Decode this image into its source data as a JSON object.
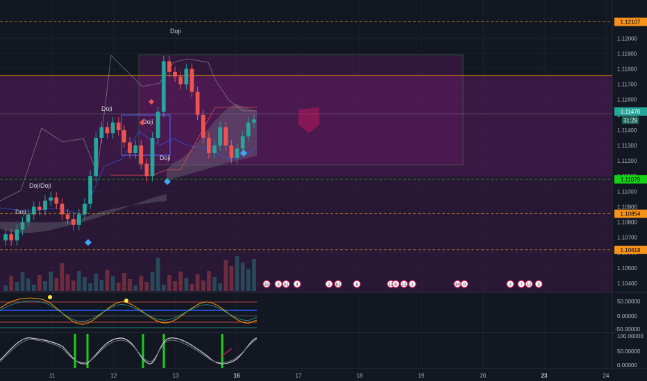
{
  "colors": {
    "background": "#131722",
    "grid": "#1f2330",
    "candle_up": "#26a69a",
    "candle_down": "#ef5350",
    "axis_text": "#b2b5be",
    "orange_tag": "#f7931a",
    "green_tag": "#14d314",
    "teal_tag": "#26a69a",
    "zone_fill": "#6a1b6a",
    "box_green": "#4caf50",
    "orange_line": "#ff9800"
  },
  "price_axis": {
    "labels": [
      "1.12000",
      "1.11900",
      "1.11800",
      "1.11700",
      "1.11600",
      "1.11500",
      "1.11400",
      "1.11300",
      "1.11200",
      "1.11100",
      "1.11000",
      "1.10900",
      "1.10800",
      "1.10700",
      "1.10600",
      "1.10500",
      "1.10400"
    ],
    "min": 1.1035,
    "max": 1.1225
  },
  "price_tags": [
    {
      "text": "1.12107",
      "value": 1.12107,
      "kind": "orange"
    },
    {
      "text": "1.11079",
      "value": 1.11079,
      "kind": "green"
    },
    {
      "text": "1.10854",
      "value": 1.10854,
      "kind": "orange"
    },
    {
      "text": "1.10618",
      "value": 1.10618,
      "kind": "orange"
    }
  ],
  "current_price": {
    "text": "1.11470",
    "value": 1.1147,
    "countdown": "31:29"
  },
  "macd_axis": {
    "labels": [
      "50.00000",
      "0.00000",
      "-50.00000"
    ]
  },
  "stoch_axis": {
    "labels": [
      "100.00000",
      "50.00000",
      "0.00000"
    ]
  },
  "time_axis": {
    "labels": [
      "11",
      "12",
      "13",
      "16",
      "17",
      "18",
      "19",
      "20",
      "23",
      "24"
    ],
    "bold": [
      "16",
      "23"
    ]
  },
  "annotations": {
    "doji_labels": [
      "Doji",
      "Doji",
      "Doji",
      "Doji",
      "Doji",
      "Doji",
      "Doji"
    ],
    "event_badges": [
      "31",
      "3",
      "31",
      "4",
      "2",
      "61",
      "8",
      "11",
      "6",
      "12",
      "2",
      "34",
      "0",
      "2",
      "7",
      "12",
      "3"
    ]
  },
  "chart_data": {
    "type": "candlestick",
    "title": "",
    "series": [
      {
        "name": "",
        "values": [
          1.1072,
          1.1068,
          1.1075,
          1.108,
          1.1085,
          1.109,
          1.1088,
          1.1094,
          1.1096,
          1.1092,
          1.1085,
          1.1082,
          1.1078,
          1.1085,
          1.1092,
          1.111,
          1.1135,
          1.1142,
          1.1138,
          1.1145,
          1.114,
          1.1132,
          1.1125,
          1.113,
          1.1118,
          1.111,
          1.1135,
          1.1152,
          1.1185,
          1.1178,
          1.1175,
          1.117,
          1.118,
          1.1165,
          1.115,
          1.1135,
          1.1125,
          1.113,
          1.1142,
          1.113,
          1.1122,
          1.1128,
          1.1136,
          1.1145,
          1.1147
        ]
      }
    ],
    "ylim": [
      1.1035,
      1.1225
    ]
  }
}
